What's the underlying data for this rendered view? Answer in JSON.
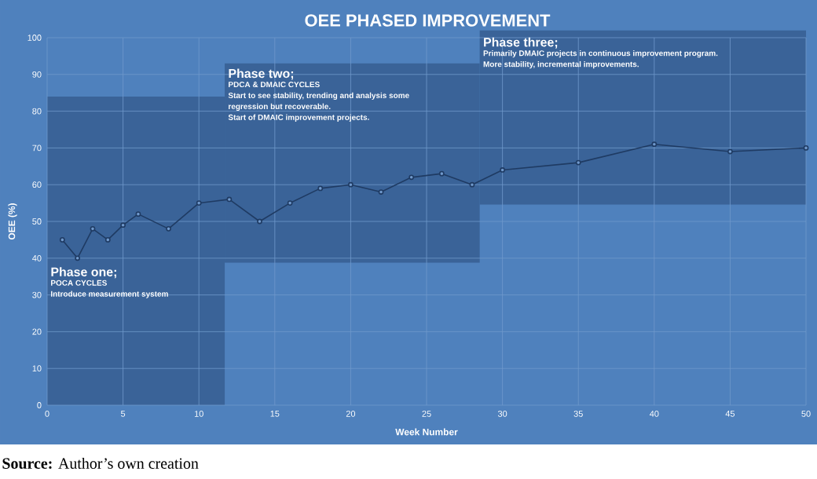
{
  "chart_data": {
    "type": "line",
    "title": "OEE PHASED IMPROVEMENT",
    "xlabel": "Week Number",
    "ylabel": "OEE (%)",
    "x": [
      1,
      2,
      3,
      4,
      5,
      6,
      8,
      10,
      12,
      14,
      16,
      18,
      20,
      22,
      24,
      26,
      28,
      30,
      35,
      40,
      45,
      50
    ],
    "series": [
      {
        "color": "#1f3b63",
        "values": [
          45,
          40,
          48,
          45,
          49,
          52,
          48,
          55,
          56,
          50,
          55,
          59,
          60,
          58,
          62,
          63,
          60,
          64,
          66,
          71,
          69,
          70
        ]
      }
    ],
    "xlim": [
      0,
      50
    ],
    "xticks": [
      0,
      5,
      10,
      15,
      20,
      25,
      30,
      35,
      40,
      45,
      50
    ],
    "ylim": [
      0,
      100
    ],
    "yticks": [
      0,
      10,
      20,
      30,
      40,
      50,
      60,
      70,
      80,
      90,
      100
    ],
    "grid": true,
    "marker": "circle",
    "line_style": "solid",
    "annotations": [
      "Phase one;",
      "POCA CYCLES",
      "Introduce measurement system",
      "Phase two;",
      "PDCA & DMAIC CYCLES",
      "Start to see stability, trending and analysis some",
      "regression but recoverable.",
      "Start of DMAIC improvement projects.",
      "Phase three;",
      "Primarily DMAIC projects in continuous improvement program.",
      "More stability, incremental improvements.",
      "**Source:** Author’s own creation"
    ]
  }
}
